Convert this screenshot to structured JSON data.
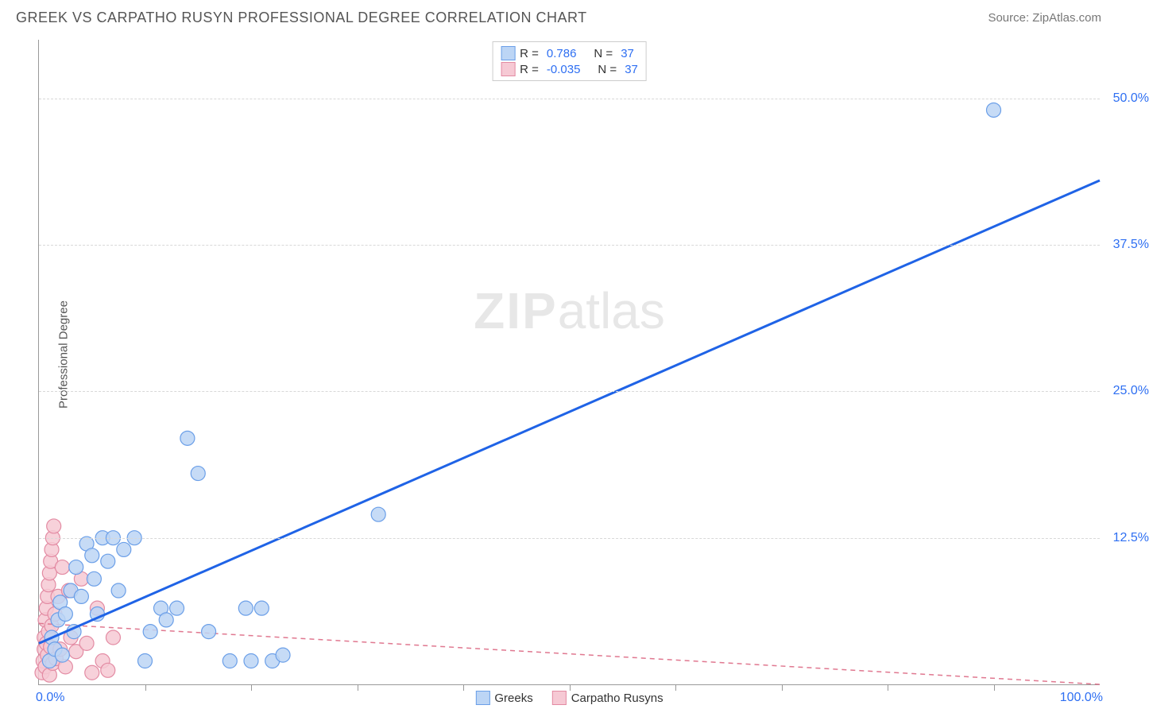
{
  "header": {
    "title": "GREEK VS CARPATHO RUSYN PROFESSIONAL DEGREE CORRELATION CHART",
    "source": "Source: ZipAtlas.com"
  },
  "ylabel": "Professional Degree",
  "watermark": {
    "bold": "ZIP",
    "rest": "atlas"
  },
  "chart": {
    "type": "scatter",
    "xlim": [
      0,
      100
    ],
    "ylim": [
      0,
      55
    ],
    "x_min_label": "0.0%",
    "x_max_label": "100.0%",
    "y_ticks": [
      12.5,
      25.0,
      37.5,
      50.0
    ],
    "y_tick_labels": [
      "12.5%",
      "25.0%",
      "37.5%",
      "50.0%"
    ],
    "x_tick_step": 10,
    "grid_color": "#d8d8d8",
    "background_color": "#ffffff",
    "axis_color": "#999999",
    "text_color": "#555555",
    "value_color": "#2e6ff2"
  },
  "series": [
    {
      "name": "Greeks",
      "marker_fill": "#bcd5f5",
      "marker_stroke": "#6b9fe8",
      "marker_radius": 9,
      "line_color": "#1f63e6",
      "line_width": 3,
      "line_dash": "none",
      "trend": {
        "x1": 0,
        "y1": 3.5,
        "x2": 100,
        "y2": 43.0
      },
      "r": "0.786",
      "n": "37",
      "points": [
        [
          1.0,
          2.0
        ],
        [
          1.2,
          4.0
        ],
        [
          1.5,
          3.0
        ],
        [
          1.8,
          5.5
        ],
        [
          2.0,
          7.0
        ],
        [
          2.2,
          2.5
        ],
        [
          2.5,
          6.0
        ],
        [
          3.0,
          8.0
        ],
        [
          3.3,
          4.5
        ],
        [
          3.5,
          10.0
        ],
        [
          4.0,
          7.5
        ],
        [
          4.5,
          12.0
        ],
        [
          5.0,
          11.0
        ],
        [
          5.2,
          9.0
        ],
        [
          5.5,
          6.0
        ],
        [
          6.0,
          12.5
        ],
        [
          6.5,
          10.5
        ],
        [
          7.0,
          12.5
        ],
        [
          7.5,
          8.0
        ],
        [
          8.0,
          11.5
        ],
        [
          9.0,
          12.5
        ],
        [
          10.0,
          2.0
        ],
        [
          10.5,
          4.5
        ],
        [
          11.5,
          6.5
        ],
        [
          12.0,
          5.5
        ],
        [
          13.0,
          6.5
        ],
        [
          14.0,
          21.0
        ],
        [
          15.0,
          18.0
        ],
        [
          16.0,
          4.5
        ],
        [
          18.0,
          2.0
        ],
        [
          19.5,
          6.5
        ],
        [
          20.0,
          2.0
        ],
        [
          21.0,
          6.5
        ],
        [
          22.0,
          2.0
        ],
        [
          23.0,
          2.5
        ],
        [
          32.0,
          14.5
        ],
        [
          90.0,
          49.0
        ]
      ]
    },
    {
      "name": "Carpatho Rusyns",
      "marker_fill": "#f6c9d4",
      "marker_stroke": "#e38ba3",
      "marker_radius": 9,
      "line_color": "#e07890",
      "line_width": 1.5,
      "line_dash": "6,5",
      "trend": {
        "x1": 0,
        "y1": 5.2,
        "x2": 100,
        "y2": 0.0
      },
      "r": "-0.035",
      "n": "37",
      "points": [
        [
          0.3,
          1.0
        ],
        [
          0.4,
          2.0
        ],
        [
          0.5,
          3.0
        ],
        [
          0.5,
          4.0
        ],
        [
          0.6,
          5.5
        ],
        [
          0.6,
          1.5
        ],
        [
          0.7,
          6.5
        ],
        [
          0.7,
          3.5
        ],
        [
          0.8,
          7.5
        ],
        [
          0.8,
          2.5
        ],
        [
          0.9,
          8.5
        ],
        [
          0.9,
          4.5
        ],
        [
          1.0,
          9.5
        ],
        [
          1.0,
          0.8
        ],
        [
          1.1,
          10.5
        ],
        [
          1.1,
          3.2
        ],
        [
          1.2,
          11.5
        ],
        [
          1.2,
          5.0
        ],
        [
          1.3,
          12.5
        ],
        [
          1.3,
          1.8
        ],
        [
          1.4,
          13.5
        ],
        [
          1.5,
          6.0
        ],
        [
          1.6,
          2.2
        ],
        [
          1.8,
          7.5
        ],
        [
          2.0,
          3.0
        ],
        [
          2.2,
          10.0
        ],
        [
          2.5,
          1.5
        ],
        [
          2.8,
          8.0
        ],
        [
          3.0,
          4.0
        ],
        [
          3.5,
          2.8
        ],
        [
          4.0,
          9.0
        ],
        [
          4.5,
          3.5
        ],
        [
          5.0,
          1.0
        ],
        [
          5.5,
          6.5
        ],
        [
          6.0,
          2.0
        ],
        [
          6.5,
          1.2
        ],
        [
          7.0,
          4.0
        ]
      ]
    }
  ],
  "legend": {
    "r_label": "R =",
    "n_label": "N ="
  },
  "bottom_legend": {
    "items": [
      "Greeks",
      "Carpatho Rusyns"
    ]
  }
}
